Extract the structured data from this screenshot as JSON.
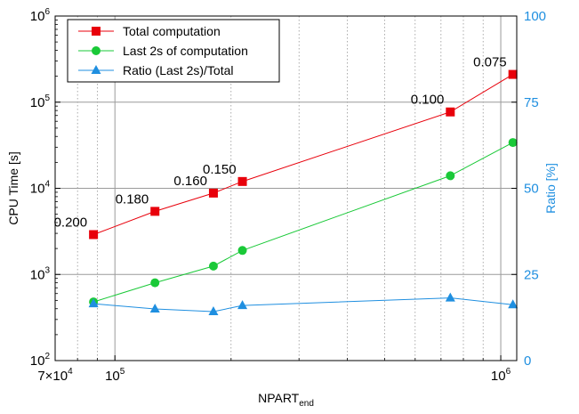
{
  "chart_data": {
    "type": "line",
    "xlabel_base": "NPART",
    "xlabel_sub": "end",
    "ylabel_left": "CPU Time [s]",
    "ylabel_right": "Ratio [%]",
    "x_scale": "log",
    "y_left_scale": "log",
    "xlim": [
      70000,
      1100000
    ],
    "ylim_left": [
      100,
      1000000
    ],
    "ylim_right": [
      0,
      100
    ],
    "grid": true,
    "legend_position": "top-left",
    "x_ticks": [
      {
        "value": 70000,
        "mant": "7×10",
        "exp": "4"
      },
      {
        "value": 100000,
        "mant": "10",
        "exp": "5"
      },
      {
        "value": 1000000,
        "mant": "10",
        "exp": "6"
      }
    ],
    "y_left_ticks": [
      {
        "value": 100,
        "mant": "10",
        "exp": "2"
      },
      {
        "value": 1000,
        "mant": "10",
        "exp": "3"
      },
      {
        "value": 10000,
        "mant": "10",
        "exp": "4"
      },
      {
        "value": 100000,
        "mant": "10",
        "exp": "5"
      },
      {
        "value": 1000000,
        "mant": "10",
        "exp": "6"
      }
    ],
    "y_right_ticks": [
      "0",
      "25",
      "50",
      "75",
      "100"
    ],
    "series": [
      {
        "name": "Total computation",
        "axis": "left",
        "color": "#e8000b",
        "marker": "square",
        "x": [
          88000,
          127000,
          180000,
          214000,
          740000,
          1075000
        ],
        "y": [
          2900,
          5400,
          8800,
          12000,
          77000,
          210000
        ]
      },
      {
        "name": "Last 2s of computation",
        "axis": "left",
        "color": "#1ac938",
        "marker": "circle",
        "x": [
          88000,
          127000,
          180000,
          214000,
          740000,
          1075000
        ],
        "y": [
          480,
          800,
          1250,
          1900,
          14000,
          34000
        ]
      },
      {
        "name": "Ratio (Last 2s)/Total",
        "axis": "right",
        "color": "#1f8fe0",
        "marker": "triangle",
        "x": [
          88000,
          127000,
          180000,
          214000,
          740000,
          1075000
        ],
        "y": [
          16.5,
          15.0,
          14.2,
          16.0,
          18.2,
          16.2
        ]
      }
    ],
    "annotations": [
      {
        "text": "0.200",
        "x": 88000,
        "y": 2900
      },
      {
        "text": "0.180",
        "x": 127000,
        "y": 5400
      },
      {
        "text": "0.160",
        "x": 180000,
        "y": 8800
      },
      {
        "text": "0.150",
        "x": 214000,
        "y": 12000
      },
      {
        "text": "0.100",
        "x": 740000,
        "y": 77000
      },
      {
        "text": "0.075",
        "x": 1075000,
        "y": 210000
      }
    ]
  }
}
